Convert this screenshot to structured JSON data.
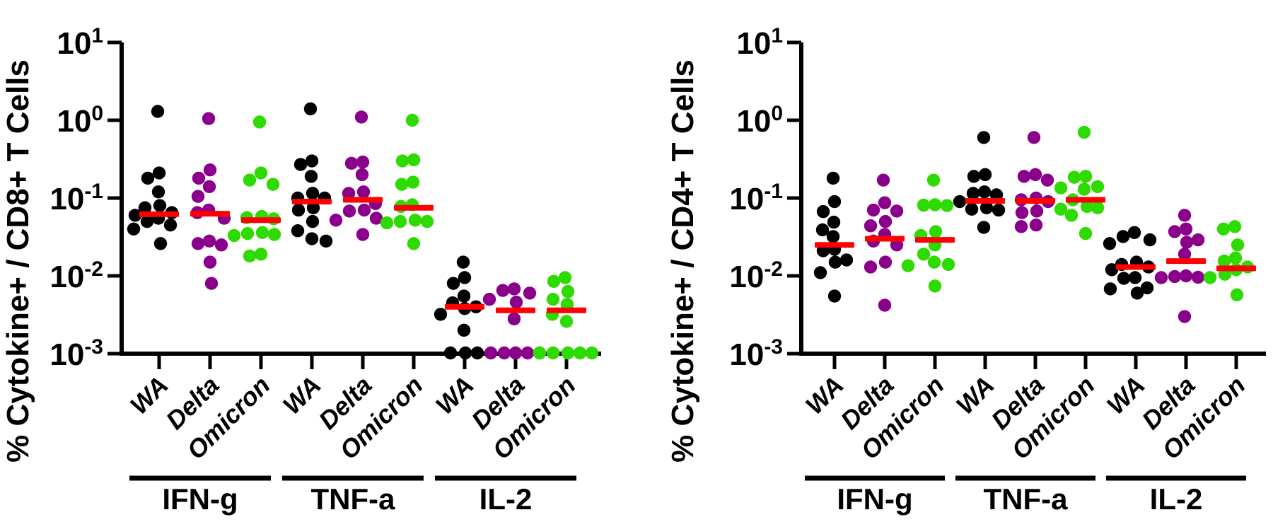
{
  "figure": {
    "background": "#FFFFFF",
    "marker": "filled-circle",
    "grid": false,
    "legend": "none",
    "colors": {
      "WA": "#000000",
      "Delta": "#8B008B",
      "Omicron": "#2EDB00",
      "median_bar": "#FF0000",
      "axis": "#000000"
    }
  },
  "chart_data": [
    {
      "id": "cd8",
      "type": "scatter",
      "y_scale": "log",
      "ylabel": "% Cytokine+ / CD8+ T Cells",
      "ylim": [
        0.001,
        10
      ],
      "y_ticks": [
        {
          "exp": 1,
          "label": "10^1"
        },
        {
          "exp": 0,
          "label": "10^0"
        },
        {
          "exp": -1,
          "label": "10^-1"
        },
        {
          "exp": -2,
          "label": "10^-2"
        },
        {
          "exp": -3,
          "label": "10^-3"
        }
      ],
      "x_tick_labels": [
        "WA",
        "Delta",
        "Omicron",
        "WA",
        "Delta",
        "Omicron",
        "WA",
        "Delta",
        "Omicron"
      ],
      "groups": [
        {
          "label": "IFN-g",
          "series": [
            {
              "name": "WA",
              "values": [
                1.3,
                0.21,
                0.18,
                0.12,
                0.08,
                0.075,
                0.065,
                0.06,
                0.055,
                0.05,
                0.045,
                0.04,
                0.026
              ],
              "median": 0.062
            },
            {
              "name": "Delta",
              "values": [
                1.05,
                0.23,
                0.18,
                0.14,
                0.105,
                0.07,
                0.065,
                0.055,
                0.028,
                0.026,
                0.025,
                0.015,
                0.008
              ],
              "median": 0.063
            },
            {
              "name": "Omicron",
              "values": [
                0.95,
                0.21,
                0.17,
                0.15,
                0.058,
                0.056,
                0.054,
                0.036,
                0.035,
                0.034,
                0.033,
                0.019,
                0.018
              ],
              "median": 0.052
            }
          ]
        },
        {
          "label": "TNF-a",
          "series": [
            {
              "name": "WA",
              "values": [
                1.4,
                0.3,
                0.27,
                0.19,
                0.115,
                0.1,
                0.1,
                0.075,
                0.07,
                0.05,
                0.038,
                0.03,
                0.028
              ],
              "median": 0.09
            },
            {
              "name": "Delta",
              "values": [
                1.1,
                0.29,
                0.28,
                0.2,
                0.12,
                0.115,
                0.085,
                0.07,
                0.068,
                0.055,
                0.052,
                0.034
              ],
              "median": 0.095
            },
            {
              "name": "Omicron",
              "values": [
                1.0,
                0.31,
                0.3,
                0.16,
                0.15,
                0.082,
                0.078,
                0.052,
                0.05,
                0.05,
                0.048,
                0.026
              ],
              "median": 0.075
            }
          ]
        },
        {
          "label": "IL-2",
          "series": [
            {
              "name": "WA",
              "values": [
                0.015,
                0.0095,
                0.008,
                0.0055,
                0.0045,
                0.004,
                0.0038,
                0.0032,
                0.002,
                0.001,
                0.001,
                0.001
              ],
              "median": 0.004
            },
            {
              "name": "Delta",
              "values": [
                0.0068,
                0.0065,
                0.006,
                0.005,
                0.0046,
                0.0028,
                0.001,
                0.001,
                0.001,
                0.001,
                0.001,
                0.001
              ],
              "median": 0.0036
            },
            {
              "name": "Omicron",
              "values": [
                0.0095,
                0.0085,
                0.0063,
                0.005,
                0.0043,
                0.0032,
                0.0026,
                0.001,
                0.001,
                0.001,
                0.001,
                0.001
              ],
              "median": 0.0036
            }
          ]
        }
      ]
    },
    {
      "id": "cd4",
      "type": "scatter",
      "y_scale": "log",
      "ylabel": "% Cytokine+ / CD4+ T Cells",
      "ylim": [
        0.001,
        10
      ],
      "y_ticks": [
        {
          "exp": 1,
          "label": "10^1"
        },
        {
          "exp": 0,
          "label": "10^0"
        },
        {
          "exp": -1,
          "label": "10^-1"
        },
        {
          "exp": -2,
          "label": "10^-2"
        },
        {
          "exp": -3,
          "label": "10^-3"
        }
      ],
      "x_tick_labels": [
        "WA",
        "Delta",
        "Omicron",
        "WA",
        "Delta",
        "Omicron",
        "WA",
        "Delta",
        "Omicron"
      ],
      "groups": [
        {
          "label": "IFN-g",
          "series": [
            {
              "name": "WA",
              "values": [
                0.18,
                0.09,
                0.067,
                0.049,
                0.039,
                0.032,
                0.022,
                0.021,
                0.016,
                0.015,
                0.011,
                0.0055
              ],
              "median": 0.025
            },
            {
              "name": "Delta",
              "values": [
                0.17,
                0.087,
                0.07,
                0.068,
                0.05,
                0.044,
                0.034,
                0.028,
                0.025,
                0.015,
                0.013,
                0.0042
              ],
              "median": 0.03
            },
            {
              "name": "Omicron",
              "values": [
                0.17,
                0.082,
                0.081,
                0.08,
                0.037,
                0.033,
                0.025,
                0.019,
                0.015,
                0.014,
                0.0135,
                0.0074
              ],
              "median": 0.029
            }
          ]
        },
        {
          "label": "TNF-a",
          "series": [
            {
              "name": "WA",
              "values": [
                0.6,
                0.2,
                0.19,
                0.12,
                0.115,
                0.11,
                0.09,
                0.075,
                0.072,
                0.07,
                0.042
              ],
              "median": 0.092
            },
            {
              "name": "Delta",
              "values": [
                0.6,
                0.2,
                0.19,
                0.17,
                0.1,
                0.095,
                0.09,
                0.068,
                0.065,
                0.045,
                0.043
              ],
              "median": 0.092
            },
            {
              "name": "Omicron",
              "values": [
                0.7,
                0.19,
                0.185,
                0.14,
                0.135,
                0.13,
                0.095,
                0.078,
                0.075,
                0.072,
                0.06,
                0.035
              ],
              "median": 0.095
            }
          ]
        },
        {
          "label": "IL-2",
          "series": [
            {
              "name": "WA",
              "values": [
                0.036,
                0.032,
                0.029,
                0.026,
                0.015,
                0.014,
                0.013,
                0.012,
                0.0095,
                0.0093,
                0.007,
                0.0068,
                0.006
              ],
              "median": 0.013
            },
            {
              "name": "Delta",
              "values": [
                0.06,
                0.04,
                0.037,
                0.029,
                0.027,
                0.019,
                0.01,
                0.0098,
                0.0096,
                0.0095,
                0.003
              ],
              "median": 0.0155
            },
            {
              "name": "Omicron",
              "values": [
                0.043,
                0.04,
                0.025,
                0.017,
                0.0155,
                0.013,
                0.012,
                0.0105,
                0.0095,
                0.0057
              ],
              "median": 0.0125
            }
          ]
        }
      ]
    }
  ]
}
